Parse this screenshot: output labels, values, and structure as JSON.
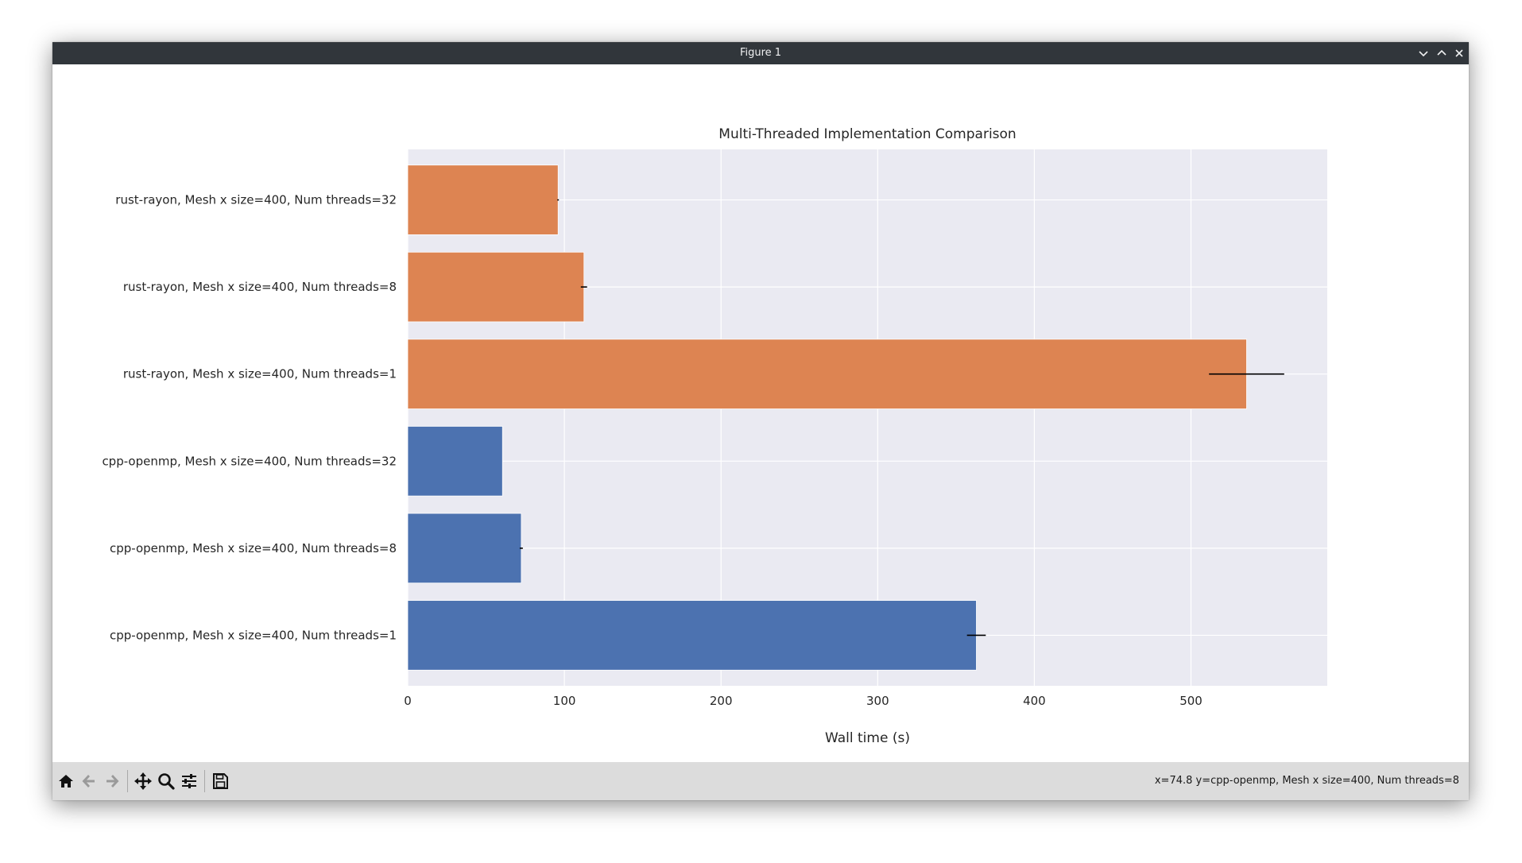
{
  "window": {
    "title": "Figure 1"
  },
  "status": {
    "text": "x=74.8 y=cpp-openmp, Mesh x size=400, Num threads=8"
  },
  "toolbar": {
    "buttons": [
      "home-icon",
      "back-arrow-icon",
      "forward-arrow-icon",
      "pan-move-icon",
      "zoom-magnifier-icon",
      "configure-subplots-icon",
      "save-disk-icon"
    ]
  },
  "colors": {
    "rust": "#dd8452",
    "cpp": "#4c72b0",
    "plot_bg": "#eaeaf2",
    "grid": "#ffffff"
  },
  "chart_data": {
    "type": "bar",
    "orientation": "horizontal",
    "title": "Multi-Threaded Implementation Comparison",
    "xlabel": "Wall time (s)",
    "ylabel": "",
    "xlim": [
      0,
      587
    ],
    "xticks": [
      0,
      100,
      200,
      300,
      400,
      500
    ],
    "grid": true,
    "categories": [
      "rust-rayon, Mesh x size=400, Num threads=32",
      "rust-rayon, Mesh x size=400, Num threads=8",
      "rust-rayon, Mesh x size=400, Num threads=1",
      "cpp-openmp, Mesh x size=400, Num threads=32",
      "cpp-openmp, Mesh x size=400, Num threads=8",
      "cpp-openmp, Mesh x size=400, Num threads=1"
    ],
    "values": [
      96,
      112.5,
      535.5,
      60.5,
      72.5,
      363
    ],
    "errors": [
      0.5,
      2,
      24,
      0,
      1,
      6
    ],
    "bar_colors": [
      "#dd8452",
      "#dd8452",
      "#dd8452",
      "#4c72b0",
      "#4c72b0",
      "#4c72b0"
    ]
  }
}
